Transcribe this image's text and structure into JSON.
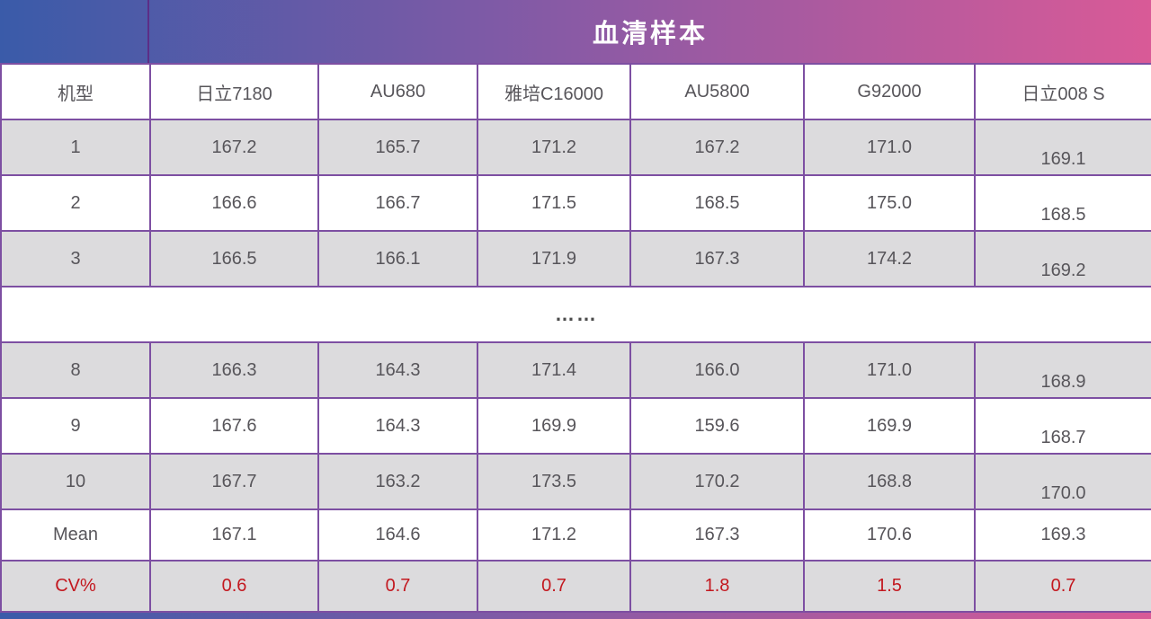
{
  "title": "血清样本",
  "colors": {
    "gradient-left": "#3a5ba9",
    "gradient-mid": "#8a5aa5",
    "gradient-right": "#d95a97",
    "border": "#7d4fa2",
    "band-divider": "#5c2d87",
    "shade": "#dcdbdd",
    "text": "#57555a",
    "red": "#c3181f",
    "title-color": "#ffffff",
    "ellipsis-color": "#4b4b4b"
  },
  "table": {
    "columns": [
      "机型",
      "日立7180",
      "AU680",
      "雅培C16000",
      "AU5800",
      "G92000",
      "日立008 S"
    ],
    "rows": [
      {
        "label": "1",
        "values": [
          "167.2",
          "165.7",
          "171.2",
          "167.2",
          "171.0",
          "169.1"
        ],
        "shaded": true,
        "last_offset": true
      },
      {
        "label": "2",
        "values": [
          "166.6",
          "166.7",
          "171.5",
          "168.5",
          "175.0",
          "168.5"
        ],
        "shaded": false,
        "last_offset": true
      },
      {
        "label": "3",
        "values": [
          "166.5",
          "166.1",
          "171.9",
          "167.3",
          "174.2",
          "169.2"
        ],
        "shaded": true,
        "last_offset": true
      },
      {
        "type": "ellipsis",
        "text": "……"
      },
      {
        "label": "8",
        "values": [
          "166.3",
          "164.3",
          "171.4",
          "166.0",
          "171.0",
          "168.9"
        ],
        "shaded": true,
        "last_offset": true
      },
      {
        "label": "9",
        "values": [
          "167.6",
          "164.3",
          "169.9",
          "159.6",
          "169.9",
          "168.7"
        ],
        "shaded": false,
        "last_offset": true
      },
      {
        "label": "10",
        "values": [
          "167.7",
          "163.2",
          "173.5",
          "170.2",
          "168.8",
          "170.0"
        ],
        "shaded": true,
        "last_offset": true
      },
      {
        "label": "Mean",
        "values": [
          "167.1",
          "164.6",
          "171.2",
          "167.3",
          "170.6",
          "169.3"
        ],
        "shaded": false,
        "last_offset": false
      },
      {
        "label": "CV%",
        "values": [
          "0.6",
          "0.7",
          "0.7",
          "1.8",
          "1.5",
          "0.7"
        ],
        "shaded": true,
        "red": true,
        "last_offset": false
      }
    ]
  }
}
